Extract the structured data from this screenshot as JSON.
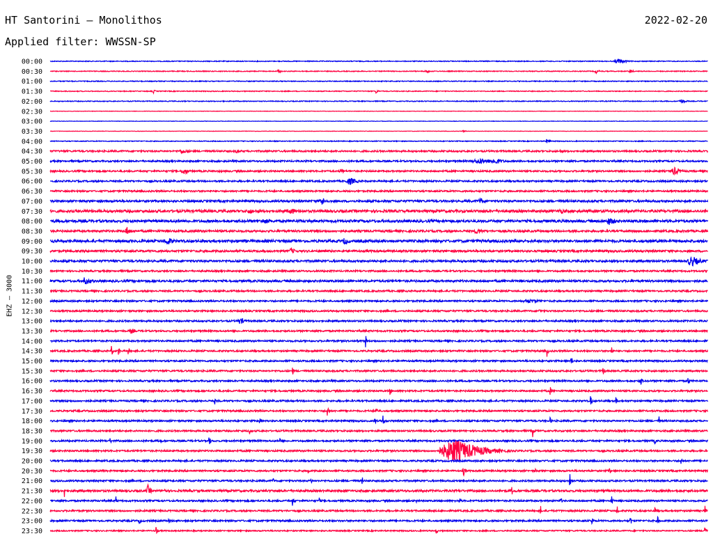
{
  "header": {
    "station": "HT Santorini – Monolithos",
    "date": "2022-02-20",
    "filter": "Applied filter: WWSSN-SP"
  },
  "chart_data": {
    "type": "line",
    "ylabel": "EHZ – 3000",
    "colors": [
      "#0000ee",
      "#ff0040"
    ],
    "rows": [
      {
        "label": "00:00",
        "noise": 1,
        "events": [
          [
            888,
            4,
            8
          ]
        ]
      },
      {
        "label": "00:30",
        "noise": 1,
        "events": [
          [
            400,
            3,
            3
          ],
          [
            612,
            3,
            3
          ],
          [
            856,
            3,
            3
          ],
          [
            905,
            3,
            3
          ]
        ]
      },
      {
        "label": "01:00",
        "noise": 1,
        "events": []
      },
      {
        "label": "01:30",
        "noise": 1,
        "events": [
          [
            220,
            3,
            2
          ],
          [
            540,
            3,
            2
          ]
        ]
      },
      {
        "label": "02:00",
        "noise": 1,
        "events": [
          [
            978,
            3,
            6
          ]
        ]
      },
      {
        "label": "02:30",
        "noise": 0.5,
        "events": []
      },
      {
        "label": "03:00",
        "noise": 0.5,
        "events": []
      },
      {
        "label": "03:30",
        "noise": 0.5,
        "events": [
          [
            665,
            2,
            2
          ]
        ]
      },
      {
        "label": "04:00",
        "noise": 1,
        "events": [
          [
            785,
            3,
            4
          ]
        ]
      },
      {
        "label": "04:30",
        "noise": 2,
        "events": [
          [
            262,
            4,
            8
          ],
          [
            340,
            3,
            3
          ],
          [
            805,
            3,
            3
          ]
        ]
      },
      {
        "label": "05:00",
        "noise": 2,
        "events": [
          [
            690,
            4,
            25
          ],
          [
            710,
            5,
            10
          ]
        ]
      },
      {
        "label": "05:30",
        "noise": 2,
        "events": [
          [
            264,
            5,
            6
          ],
          [
            490,
            4,
            5
          ],
          [
            968,
            6,
            8
          ]
        ]
      },
      {
        "label": "06:00",
        "noise": 2,
        "events": [
          [
            502,
            6,
            8
          ]
        ]
      },
      {
        "label": "06:30",
        "noise": 2,
        "events": []
      },
      {
        "label": "07:00",
        "noise": 2.5,
        "events": [
          [
            462,
            6,
            6
          ],
          [
            690,
            5,
            5
          ]
        ]
      },
      {
        "label": "07:30",
        "noise": 3,
        "events": [
          [
            358,
            5,
            5
          ],
          [
            418,
            6,
            5
          ],
          [
            805,
            4,
            8
          ]
        ]
      },
      {
        "label": "08:00",
        "noise": 3,
        "events": [
          [
            380,
            4,
            10
          ],
          [
            875,
            6,
            8
          ]
        ]
      },
      {
        "label": "08:30",
        "noise": 2.5,
        "events": [
          [
            182,
            6,
            5
          ],
          [
            685,
            5,
            6
          ]
        ]
      },
      {
        "label": "09:00",
        "noise": 3,
        "events": [
          [
            240,
            6,
            8
          ],
          [
            495,
            6,
            5
          ]
        ]
      },
      {
        "label": "09:30",
        "noise": 2.5,
        "events": [
          [
            418,
            5,
            5
          ]
        ]
      },
      {
        "label": "10:00",
        "noise": 2.5,
        "events": [
          [
            993,
            8,
            10
          ]
        ]
      },
      {
        "label": "10:30",
        "noise": 2,
        "events": []
      },
      {
        "label": "11:00",
        "noise": 2.5,
        "events": [
          [
            122,
            6,
            8
          ]
        ]
      },
      {
        "label": "11:30",
        "noise": 2,
        "events": []
      },
      {
        "label": "12:00",
        "noise": 2,
        "events": [
          [
            760,
            3,
            20
          ]
        ]
      },
      {
        "label": "12:30",
        "noise": 2,
        "events": [
          [
            775,
            3,
            4
          ]
        ]
      },
      {
        "label": "13:00",
        "noise": 2,
        "events": [
          [
            345,
            5,
            6
          ]
        ]
      },
      {
        "label": "13:30",
        "noise": 2,
        "events": [
          [
            188,
            4,
            5
          ]
        ]
      },
      {
        "label": "14:00",
        "noise": 2,
        "events": [
          [
            513,
            6,
            1
          ],
          [
            525,
            9,
            1
          ]
        ]
      },
      {
        "label": "14:30",
        "noise": 2,
        "events": [
          [
            160,
            9,
            1
          ],
          [
            170,
            8,
            1
          ],
          [
            184,
            7,
            1
          ],
          [
            785,
            9,
            1
          ],
          [
            878,
            9,
            1
          ]
        ]
      },
      {
        "label": "15:00",
        "noise": 2,
        "events": [
          [
            820,
            9,
            1
          ]
        ]
      },
      {
        "label": "15:30",
        "noise": 2,
        "events": [
          [
            420,
            6,
            1
          ],
          [
            866,
            9,
            1
          ]
        ]
      },
      {
        "label": "16:00",
        "noise": 2,
        "events": [
          [
            920,
            6,
            2
          ],
          [
            988,
            8,
            1
          ]
        ]
      },
      {
        "label": "16:30",
        "noise": 2,
        "events": [
          [
            560,
            5,
            2
          ],
          [
            790,
            6,
            1
          ]
        ]
      },
      {
        "label": "17:00",
        "noise": 2,
        "events": [
          [
            96,
            4,
            1
          ],
          [
            308,
            5,
            1
          ],
          [
            848,
            9,
            1
          ],
          [
            884,
            7,
            1
          ]
        ]
      },
      {
        "label": "17:30",
        "noise": 2,
        "events": [
          [
            470,
            11,
            1
          ],
          [
            540,
            9,
            1
          ]
        ]
      },
      {
        "label": "18:00",
        "noise": 2,
        "events": [
          [
            372,
            8,
            1
          ],
          [
            538,
            8,
            1
          ],
          [
            550,
            9,
            1
          ],
          [
            790,
            5,
            1
          ],
          [
            946,
            7,
            1
          ]
        ]
      },
      {
        "label": "18:30",
        "noise": 2,
        "events": [
          [
            358,
            8,
            1
          ],
          [
            765,
            9,
            1
          ]
        ]
      },
      {
        "label": "19:00",
        "noise": 2,
        "events": [
          [
            158,
            5,
            1
          ],
          [
            230,
            5,
            1
          ],
          [
            300,
            11,
            1
          ],
          [
            402,
            7,
            1
          ],
          [
            940,
            5,
            1
          ]
        ]
      },
      {
        "label": "19:30",
        "noise": 2,
        "events": [
          [
            652,
            18,
            28
          ],
          [
            664,
            10,
            6
          ]
        ]
      },
      {
        "label": "20:00",
        "noise": 2,
        "events": [
          [
            978,
            7,
            1
          ]
        ]
      },
      {
        "label": "20:30",
        "noise": 2,
        "events": [
          [
            148,
            5,
            1
          ],
          [
            442,
            6,
            1
          ],
          [
            665,
            12,
            1
          ],
          [
            768,
            5,
            1
          ],
          [
            875,
            6,
            1
          ]
        ]
      },
      {
        "label": "21:00",
        "noise": 2,
        "events": [
          [
            392,
            5,
            1
          ],
          [
            446,
            6,
            1
          ],
          [
            520,
            5,
            1
          ],
          [
            818,
            12,
            1
          ]
        ]
      },
      {
        "label": "21:30",
        "noise": 2.5,
        "events": [
          [
            92,
            10,
            1
          ],
          [
            212,
            9,
            3
          ],
          [
            236,
            9,
            1
          ],
          [
            735,
            6,
            1
          ]
        ]
      },
      {
        "label": "22:00",
        "noise": 2,
        "events": [
          [
            166,
            7,
            1
          ],
          [
            420,
            8,
            1
          ],
          [
            458,
            6,
            1
          ],
          [
            598,
            6,
            1
          ],
          [
            660,
            6,
            1
          ],
          [
            805,
            6,
            1
          ],
          [
            878,
            7,
            1
          ]
        ]
      },
      {
        "label": "22:30",
        "noise": 2,
        "events": [
          [
            776,
            7,
            1
          ],
          [
            886,
            8,
            1
          ],
          [
            940,
            7,
            1
          ],
          [
            1012,
            9,
            1
          ]
        ]
      },
      {
        "label": "23:00",
        "noise": 2,
        "events": [
          [
            200,
            7,
            1
          ],
          [
            242,
            5,
            1
          ],
          [
            850,
            8,
            1
          ],
          [
            905,
            8,
            1
          ],
          [
            944,
            9,
            1
          ]
        ]
      },
      {
        "label": "23:30",
        "noise": 1.5,
        "events": [
          [
            224,
            8,
            1
          ],
          [
            626,
            6,
            1
          ],
          [
            1012,
            10,
            1
          ]
        ]
      }
    ]
  }
}
